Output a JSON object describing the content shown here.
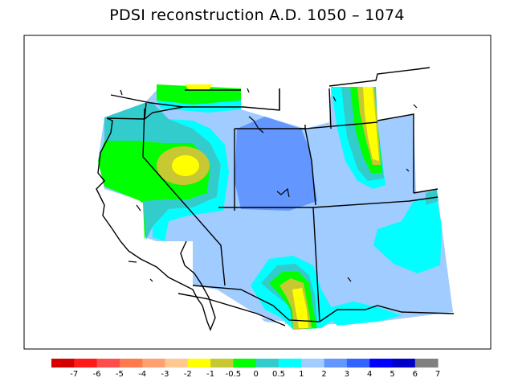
{
  "title": "PDSI reconstruction A.D. 1050 – 1074",
  "colors": {
    "background": "#ffffff",
    "frame": "#000000",
    "boundary": "#000000"
  },
  "legend": {
    "labels": [
      "-7",
      "-6",
      "-5",
      "-4",
      "-3",
      "-2",
      "-1",
      "-0.5",
      "0",
      "0.5",
      "1",
      "2",
      "3",
      "4",
      "5",
      "6",
      "7"
    ],
    "colors": [
      "#d40000",
      "#ff1a1a",
      "#ff4d4d",
      "#ff7a4d",
      "#ffa070",
      "#ffc890",
      "#ffff00",
      "#c8c832",
      "#00ff00",
      "#33cccc",
      "#00ffff",
      "#a0ccff",
      "#6496ff",
      "#3264ff",
      "#0000ff",
      "#0000c8",
      "#808080"
    ]
  }
}
